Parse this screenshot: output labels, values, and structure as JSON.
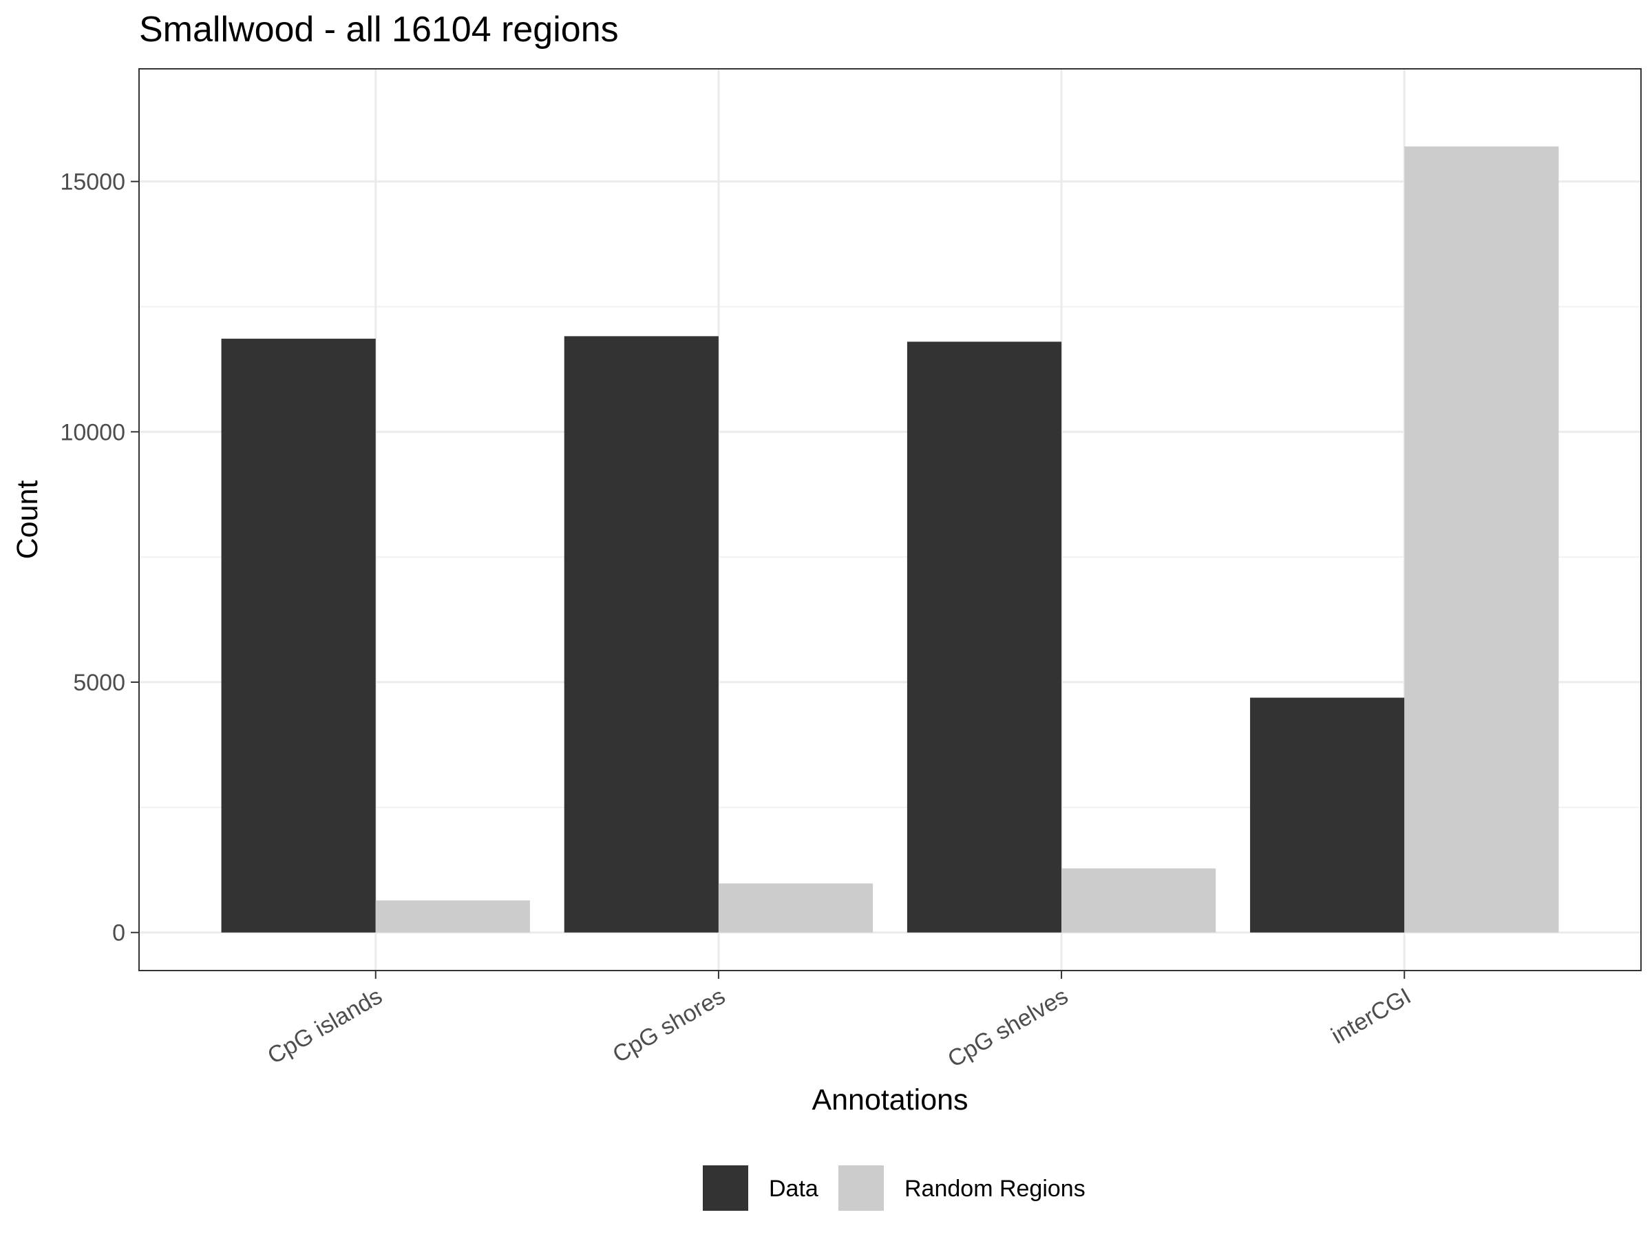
{
  "chart_data": {
    "type": "bar",
    "title": "Smallwood - all 16104 regions",
    "xlabel": "Annotations",
    "ylabel": "Count",
    "categories": [
      "CpG islands",
      "CpG shores",
      "CpG shelves",
      "interCGI"
    ],
    "series": [
      {
        "name": "Data",
        "color": "#333333",
        "values": [
          11860,
          11910,
          11800,
          4690
        ]
      },
      {
        "name": "Random Regions",
        "color": "#cccccc",
        "values": [
          640,
          980,
          1280,
          15700
        ]
      }
    ],
    "ylim": [
      -760,
      17250
    ],
    "yticks": [
      0,
      5000,
      10000,
      15000
    ],
    "ytick_labels": [
      "0",
      "5000",
      "10000",
      "15000"
    ],
    "grid": true,
    "legend_position": "bottom"
  }
}
